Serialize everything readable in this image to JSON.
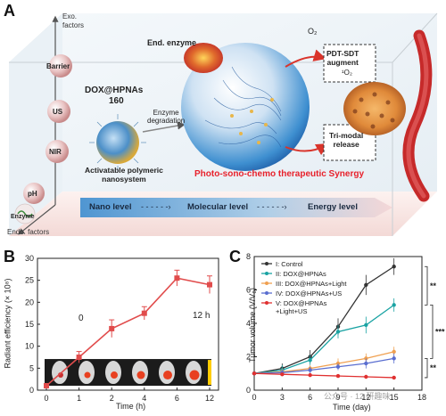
{
  "panelA": {
    "letter": "A",
    "exo_label": "Exo.\nfactors",
    "endo_label": "Endo. factors",
    "stimuli": [
      "Barrier",
      "US",
      "NIR",
      "pH",
      "Enzyme"
    ],
    "end_enzyme": "End. enzyme",
    "dox_title_line1": "DOX@HPNAs",
    "dox_title_line2": "160",
    "enzyme_degradation": "Enzyme\ndegradation",
    "activatable": "Activatable polymeric\nnanosystem",
    "o2": "O₂",
    "pdt_sdt": "PDT-SDT\naugment",
    "singlet_o2": "¹O₂",
    "tri_modal": "Tri-modal\nrelease",
    "synergy": "Photo-sono-chemo therapeutic Synergy",
    "level_bar": [
      "Nano level",
      "Molecular level",
      "Energy level"
    ],
    "colors": {
      "synergy": "#e8212b",
      "level_bar": "#7db0d6",
      "arrow": "#d9342b"
    }
  },
  "panelB": {
    "letter": "B",
    "ylabel": "Radiant efficiency (× 10⁸)",
    "xlabel": "Time (h)",
    "gradient_left": "0",
    "gradient_right": "12 h",
    "chart_data": {
      "type": "line",
      "categories": [
        "0",
        "1",
        "2",
        "4",
        "6",
        "12"
      ],
      "values": [
        1,
        7.5,
        14,
        17.5,
        25.5,
        24
      ],
      "errors": [
        0.5,
        1.3,
        2,
        1.5,
        1.8,
        2
      ],
      "yticks": [
        0,
        5,
        10,
        15,
        20,
        25,
        30
      ],
      "ylim": [
        0,
        30
      ],
      "color": "#e14c4c"
    }
  },
  "panelC": {
    "letter": "C",
    "ylabel": "Tumor volume (V/V₀)",
    "xlabel": "Time (day)",
    "legend": [
      "I: Control",
      "II: DOX@HPNAs",
      "III: DOX@HPNAs+Light",
      "IV: DOX@HPNAs+US",
      "V: DOX@HPNAs\n+Light+US"
    ],
    "significance": [
      "**",
      "***",
      "**"
    ],
    "watermark": "公众号 · 12 研趣味",
    "chart_data": {
      "type": "line",
      "x": [
        0,
        3,
        6,
        9,
        12,
        15
      ],
      "xticks": [
        0,
        3,
        6,
        9,
        12,
        15,
        18
      ],
      "yticks": [
        0,
        2,
        4,
        6,
        8
      ],
      "xlim": [
        0,
        18
      ],
      "ylim": [
        0,
        8
      ],
      "series": [
        {
          "name": "I: Control",
          "color": "#333333",
          "values": [
            1,
            1.3,
            2,
            3.8,
            6.3,
            7.4
          ]
        },
        {
          "name": "II: DOX@HPNAs",
          "color": "#1aa3a3",
          "values": [
            1,
            1.2,
            1.8,
            3.5,
            3.9,
            5.1
          ]
        },
        {
          "name": "III: DOX@HPNAs+Light",
          "color": "#f0a050",
          "values": [
            1,
            1.1,
            1.3,
            1.6,
            1.9,
            2.3
          ]
        },
        {
          "name": "IV: DOX@HPNAs+US",
          "color": "#5a6ed0",
          "values": [
            1,
            1.05,
            1.2,
            1.4,
            1.6,
            1.9
          ]
        },
        {
          "name": "V: DOX@HPNAs\n+Light+US",
          "color": "#e03030",
          "values": [
            1,
            0.95,
            0.9,
            0.85,
            0.8,
            0.75
          ]
        }
      ],
      "errors": [
        [
          0.1,
          0.3,
          0.4,
          0.5,
          0.6,
          0.5
        ],
        [
          0.1,
          0.3,
          0.3,
          0.4,
          0.5,
          0.4
        ],
        [
          0.1,
          0.2,
          0.2,
          0.3,
          0.3,
          0.3
        ],
        [
          0.1,
          0.2,
          0.2,
          0.2,
          0.3,
          0.3
        ],
        [
          0.1,
          0.1,
          0.1,
          0.1,
          0.1,
          0.1
        ]
      ]
    }
  }
}
